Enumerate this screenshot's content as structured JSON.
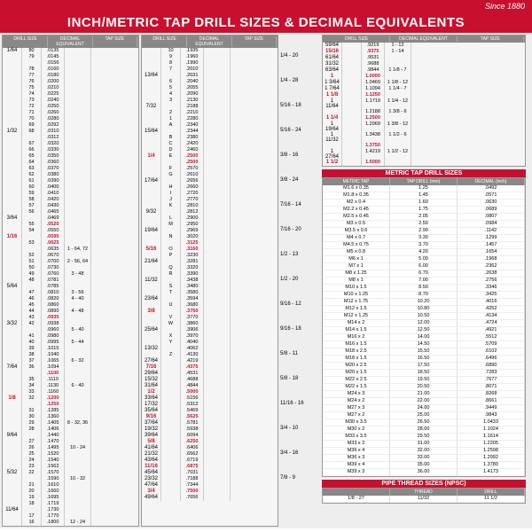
{
  "since": "Since 1880",
  "title": "INCH/METRIC TAP DRILL SIZES & DECIMAL EQUIVALENTS",
  "headers": {
    "ds": "DRILL SIZE",
    "de": "DECIMAL EQUIVALENT",
    "ts": "TAP SIZE"
  },
  "col1": [
    {
      "f": "1/64",
      "n": "80",
      "d": ".0135"
    },
    {
      "n": "79",
      "d": ".0145"
    },
    {
      "n": "",
      "d": ".0156"
    },
    {
      "n": "78",
      "d": ".0160"
    },
    {
      "n": "77",
      "d": ".0180"
    },
    {
      "n": "76",
      "d": ".0200"
    },
    {
      "n": "75",
      "d": ".0210"
    },
    {
      "n": "74",
      "d": ".0225"
    },
    {
      "n": "73",
      "d": ".0240"
    },
    {
      "n": "72",
      "d": ".0250"
    },
    {
      "n": "71",
      "d": ".0260"
    },
    {
      "n": "70",
      "d": ".0280"
    },
    {
      "n": "69",
      "d": ".0292"
    },
    {
      "f": "1/32",
      "n": "68",
      "d": ".0310"
    },
    {
      "n": "",
      "d": ".0312"
    },
    {
      "n": "67",
      "d": ".0320"
    },
    {
      "n": "66",
      "d": ".0330"
    },
    {
      "n": "65",
      "d": ".0350"
    },
    {
      "n": "64",
      "d": ".0360"
    },
    {
      "n": "63",
      "d": ".0370"
    },
    {
      "n": "62",
      "d": ".0380"
    },
    {
      "n": "61",
      "d": ".0390"
    },
    {
      "n": "60",
      "d": ".0400"
    },
    {
      "n": "59",
      "d": ".0410"
    },
    {
      "n": "58",
      "d": ".0420"
    },
    {
      "n": "57",
      "d": ".0430"
    },
    {
      "n": "56",
      "d": ".0465"
    },
    {
      "f": "3/64",
      "n": "",
      "d": ".0469"
    },
    {
      "n": "55",
      "d": ".0520",
      "r": 1
    },
    {
      "n": "54",
      "d": ".0550"
    },
    {
      "f": "1/16",
      "n": "",
      "d": ".0595",
      "r": 1
    },
    {
      "n": "53",
      "d": ".0625",
      "r": 1
    },
    {
      "n": "",
      "d": ".0635",
      "t": "1 - 64, 72"
    },
    {
      "n": "52",
      "d": ".0670"
    },
    {
      "n": "51",
      "d": ".0700",
      "t": "2 - 56, 64"
    },
    {
      "n": "50",
      "d": ".0730"
    },
    {
      "n": "49",
      "d": ".0760",
      "t": "3 - 48"
    },
    {
      "n": "48",
      "d": ".0781"
    },
    {
      "f": "5/64",
      "n": "",
      "d": ".0785"
    },
    {
      "n": "47",
      "d": ".0810",
      "t": "3 - 56"
    },
    {
      "n": "46",
      "d": ".0820",
      "t": "4 - 40"
    },
    {
      "n": "45",
      "d": ".0860"
    },
    {
      "n": "44",
      "d": ".0890",
      "t": "4 - 48"
    },
    {
      "n": "43",
      "d": ".0935",
      "r": 1
    },
    {
      "f": "3/32",
      "n": "42",
      "d": ".0938"
    },
    {
      "n": "",
      "d": ".0960",
      "t": "5 - 40"
    },
    {
      "n": "41",
      "d": ".0980"
    },
    {
      "n": "40",
      "d": ".0995",
      "t": "5 - 44"
    },
    {
      "n": "39",
      "d": ".1015"
    },
    {
      "n": "38",
      "d": ".1040"
    },
    {
      "n": "37",
      "d": ".1065",
      "t": "6 - 32"
    },
    {
      "f": "7/64",
      "n": "36",
      "d": ".1094"
    },
    {
      "n": "",
      "d": ".1100",
      "r": 1
    },
    {
      "n": "35",
      "d": ".1110"
    },
    {
      "n": "34",
      "d": ".1130",
      "t": "6 - 40"
    },
    {
      "n": "33",
      "d": ".1160"
    },
    {
      "f": "1/8",
      "n": "32",
      "d": ".1200",
      "r": 1
    },
    {
      "n": "",
      "d": ".1250",
      "r": 1
    },
    {
      "n": "31",
      "d": ".1285"
    },
    {
      "n": "30",
      "d": ".1360"
    },
    {
      "n": "29",
      "d": ".1405",
      "t": "8 - 32, 36"
    },
    {
      "n": "28",
      "d": ".1406"
    },
    {
      "f": "9/64",
      "n": "",
      "d": ".1440"
    },
    {
      "n": "27",
      "d": ".1470"
    },
    {
      "n": "26",
      "d": ".1495",
      "t": "10 - 24"
    },
    {
      "n": "25",
      "d": ".1520"
    },
    {
      "n": "24",
      "d": ".1540"
    },
    {
      "n": "23",
      "d": ".1562"
    },
    {
      "f": "5/32",
      "n": "22",
      "d": ".1570"
    },
    {
      "n": "",
      "d": ".1590",
      "t": "10 - 32"
    },
    {
      "n": "21",
      "d": ".1610"
    },
    {
      "n": "20",
      "d": ".1660"
    },
    {
      "n": "19",
      "d": ".1695"
    },
    {
      "n": "18",
      "d": ".1719"
    },
    {
      "f": "11/64",
      "n": "",
      "d": ".1730"
    },
    {
      "n": "17",
      "d": ".1770"
    },
    {
      "n": "16",
      "d": ".1800",
      "t": "12 - 24"
    }
  ],
  "col2": [
    {
      "n": "10",
      "d": ".1935"
    },
    {
      "n": "9",
      "d": ".1960"
    },
    {
      "n": "8",
      "d": ".1990"
    },
    {
      "n": "7",
      "d": ".2010"
    },
    {
      "f": "13/64",
      "n": "",
      "d": ".2031"
    },
    {
      "n": "6",
      "d": ".2040"
    },
    {
      "n": "5",
      "d": ".2055"
    },
    {
      "n": "4",
      "d": ".2090"
    },
    {
      "n": "3",
      "d": ".2130"
    },
    {
      "f": "7/32",
      "n": "",
      "d": ".2188"
    },
    {
      "n": "2",
      "d": ".2210"
    },
    {
      "n": "1",
      "d": ".2280"
    },
    {
      "n": "A",
      "d": ".2340"
    },
    {
      "f": "15/64",
      "n": "",
      "d": ".2344"
    },
    {
      "n": "B",
      "d": ".2380"
    },
    {
      "n": "C",
      "d": ".2420"
    },
    {
      "n": "D",
      "d": ".2460"
    },
    {
      "f": "1/4",
      "n": "E",
      "d": ".2500",
      "r": 1
    },
    {
      "n": "",
      "d": ".2500",
      "r": 1
    },
    {
      "n": "F",
      "d": ".2570"
    },
    {
      "n": "G",
      "d": ".2610"
    },
    {
      "f": "17/64",
      "n": "",
      "d": ".2656"
    },
    {
      "n": "H",
      "d": ".2660"
    },
    {
      "n": "I",
      "d": ".2720"
    },
    {
      "n": "J",
      "d": ".2770"
    },
    {
      "n": "K",
      "d": ".2810"
    },
    {
      "f": "9/32",
      "n": "",
      "d": ".2812"
    },
    {
      "n": "L",
      "d": ".2900"
    },
    {
      "n": "M",
      "d": ".2950"
    },
    {
      "f": "19/64",
      "n": "",
      "d": ".2969"
    },
    {
      "n": "N",
      "d": ".3020"
    },
    {
      "n": "",
      "d": ".3125",
      "r": 1
    },
    {
      "f": "5/16",
      "n": "O",
      "d": ".3160",
      "r": 1
    },
    {
      "n": "P",
      "d": ".3230"
    },
    {
      "f": "21/64",
      "n": "",
      "d": ".3281"
    },
    {
      "n": "Q",
      "d": ".3320"
    },
    {
      "n": "R",
      "d": ".3390"
    },
    {
      "f": "11/32",
      "n": "",
      "d": ".3438"
    },
    {
      "n": "S",
      "d": ".3480"
    },
    {
      "n": "T",
      "d": ".3580"
    },
    {
      "f": "23/64",
      "n": "",
      "d": ".3594"
    },
    {
      "n": "U",
      "d": ".3680"
    },
    {
      "f": "3/8",
      "n": "",
      "d": ".3750",
      "r": 1
    },
    {
      "n": "V",
      "d": ".3770"
    },
    {
      "n": "W",
      "d": ".3860"
    },
    {
      "f": "25/64",
      "n": "",
      "d": ".3906"
    },
    {
      "n": "X",
      "d": ".3970"
    },
    {
      "n": "Y",
      "d": ".4040"
    },
    {
      "f": "13/32",
      "n": "",
      "d": ".4062"
    },
    {
      "n": "Z",
      "d": ".4130"
    },
    {
      "f": "27/64",
      "n": "",
      "d": ".4219"
    },
    {
      "f": "7/16",
      "n": "",
      "d": ".4375",
      "r": 1
    },
    {
      "f": "29/64",
      "n": "",
      "d": ".4531"
    },
    {
      "f": "15/32",
      "n": "",
      "d": ".4688"
    },
    {
      "f": "31/64",
      "n": "",
      "d": ".4844"
    },
    {
      "f": "1/2",
      "n": "",
      "d": ".5000",
      "r": 1
    },
    {
      "f": "33/64",
      "n": "",
      "d": ".5156"
    },
    {
      "f": "17/32",
      "n": "",
      "d": ".5312"
    },
    {
      "f": "35/64",
      "n": "",
      "d": ".5469"
    },
    {
      "f": "9/16",
      "n": "",
      "d": ".5625",
      "r": 1
    },
    {
      "f": "37/64",
      "n": "",
      "d": ".5781"
    },
    {
      "f": "19/32",
      "n": "",
      "d": ".5938"
    },
    {
      "f": "39/64",
      "n": "",
      "d": ".6094"
    },
    {
      "f": "5/8",
      "n": "",
      "d": ".6250",
      "r": 1
    },
    {
      "f": "41/64",
      "n": "",
      "d": ".6406"
    },
    {
      "f": "21/32",
      "n": "",
      "d": ".6562"
    },
    {
      "f": "43/64",
      "n": "",
      "d": ".6719"
    },
    {
      "f": "11/16",
      "n": "",
      "d": ".6875",
      "r": 1
    },
    {
      "f": "45/64",
      "n": "",
      "d": ".7031"
    },
    {
      "f": "23/32",
      "n": "",
      "d": ".7188"
    },
    {
      "f": "47/64",
      "n": "",
      "d": ".7344"
    },
    {
      "f": "3/4",
      "n": "",
      "d": ".7500",
      "r": 1
    },
    {
      "f": "49/64",
      "n": "",
      "d": ".7656"
    }
  ],
  "col2taps": [
    "1/4 - 20",
    "1/4 - 28",
    "5/16 - 18",
    "5/16 - 24",
    "3/8 - 16",
    "3/8 - 24",
    "7/16 - 14",
    "7/16 - 20",
    "1/2 - 13",
    "1/2 - 20",
    "9/16 - 12",
    "9/16 - 18",
    "5/8 - 11",
    "5/8 - 18",
    "11/16 - 16",
    "3/4 - 10",
    "3/4 - 16",
    "7/8 - 9"
  ],
  "col3": [
    {
      "f": "59/64",
      "n": "",
      "d": ".9219",
      "t": "1 - 12"
    },
    {
      "f": "15/16",
      "n": "",
      "d": ".9375",
      "r": 1,
      "t": "1 - 14"
    },
    {
      "f": "61/64",
      "n": "",
      "d": ".9531"
    },
    {
      "f": "31/32",
      "n": "",
      "d": ".9688"
    },
    {
      "f": "63/64",
      "n": "",
      "d": ".9844",
      "t": "1 1/8 - 7"
    },
    {
      "f": "1",
      "n": "",
      "d": "1.0000",
      "r": 1
    },
    {
      "f": "1 3/64",
      "n": "",
      "d": "1.0469",
      "t": "1 1/8 - 12"
    },
    {
      "f": "1 7/64",
      "n": "",
      "d": "1.1094",
      "t": "1 1/4 - 7"
    },
    {
      "f": "1 1/8",
      "n": "",
      "d": "1.1250",
      "r": 1
    },
    {
      "f": "1 11/64",
      "n": "",
      "d": "1.1719",
      "t": "1 1/4 - 12"
    },
    {
      "n": "",
      "d": "1.2188",
      "t": "1 3/8 - 6"
    },
    {
      "f": "1 1/4",
      "n": "",
      "d": "1.2500",
      "r": 1
    },
    {
      "f": "1 19/64",
      "n": "",
      "d": "1.2969",
      "t": "1 3/8 - 12"
    },
    {
      "f": "1 11/32",
      "n": "",
      "d": "1.3438",
      "t": "1 1/2 - 6"
    },
    {
      "n": "",
      "d": "1.3750",
      "r": 1
    },
    {
      "f": "1 27/64",
      "n": "",
      "d": "1.4219",
      "t": "1 1/2 - 12"
    },
    {
      "f": "1 1/2",
      "n": "",
      "d": "1.5000",
      "r": 1
    }
  ],
  "metric": {
    "title": "METRIC TAP DRILL SIZES",
    "hdr": [
      "METRIC TAP",
      "TAP DRILL (mm)",
      "DECIMAL (inch)"
    ],
    "rows": [
      [
        "M1.6 x 0.35",
        "1.25",
        ".0492"
      ],
      [
        "M1.8 x 0.35",
        "1.45",
        ".0571"
      ],
      [
        "M2 x 0.4",
        "1.60",
        ".0630"
      ],
      [
        "M2.2 x 0.45",
        "1.75",
        ".0689"
      ],
      [
        "M2.5 x 0.45",
        "2.05",
        ".0807"
      ],
      [
        "M3 x 0.5",
        "2.50",
        ".0984"
      ],
      [
        "M3.5 x 0.6",
        "2.90",
        ".1142"
      ],
      [
        "M4 x 0.7",
        "3.30",
        ".1299"
      ],
      [
        "M4.5 x 0.75",
        "3.70",
        ".1457"
      ],
      [
        "M5 x 0.8",
        "4.20",
        ".1654"
      ],
      [
        "M6 x 1",
        "5.00",
        ".1968"
      ],
      [
        "M7 x 1",
        "6.00",
        ".2362"
      ],
      [
        "M8 x 1.25",
        "6.70",
        ".2638"
      ],
      [
        "M8 x 1",
        "7.00",
        ".2756"
      ],
      [
        "M10 x 1.5",
        "8.50",
        ".3346"
      ],
      [
        "M10 x 1.25",
        "8.70",
        ".3425"
      ],
      [
        "M12 x 1.75",
        "10.20",
        ".4016"
      ],
      [
        "M12 x 1.5",
        "10.80",
        ".4252"
      ],
      [
        "M12 x 1.25",
        "10.50",
        ".4134"
      ],
      [
        "M14 x 2",
        "12.00",
        ".4724"
      ],
      [
        "M14 x 1.5",
        "12.50",
        ".4921"
      ],
      [
        "M16 x 2",
        "14.00",
        ".5512"
      ],
      [
        "M16 x 1.5",
        "14.50",
        ".5709"
      ],
      [
        "M18 x 2.5",
        "15.50",
        ".6102"
      ],
      [
        "M18 x 1.5",
        "16.50",
        ".6496"
      ],
      [
        "M20 x 2.5",
        "17.50",
        ".6890"
      ],
      [
        "M20 x 1.5",
        "18.50",
        ".7283"
      ],
      [
        "M22 x 2.5",
        "19.50",
        ".7677"
      ],
      [
        "M22 x 1.5",
        "20.50",
        ".8071"
      ],
      [
        "M24 x 3",
        "21.00",
        ".8268"
      ],
      [
        "M24 x 2",
        "22.00",
        ".8661"
      ],
      [
        "M27 x 3",
        "24.00",
        ".9449"
      ],
      [
        "M27 x 2",
        "25.00",
        ".9843"
      ],
      [
        "M30 x 3.5",
        "26.50",
        "1.0433"
      ],
      [
        "M30 x 2",
        "28.00",
        "1.1024"
      ],
      [
        "M33 x 3.5",
        "29.50",
        "1.1614"
      ],
      [
        "M33 x 2",
        "31.00",
        "1.2205"
      ],
      [
        "M36 x 4",
        "32.00",
        "1.2598"
      ],
      [
        "M36 x 3",
        "33.00",
        "1.2992"
      ],
      [
        "M39 x 4",
        "35.00",
        "1.3780"
      ],
      [
        "M39 x 3",
        "36.00",
        "1.4173"
      ]
    ]
  },
  "pipe": {
    "title": "PIPE THREAD SIZES (NPSC)",
    "hdr": [
      "",
      "THREAD",
      "DRILL"
    ],
    "rows": [
      [
        "1/8 - 27",
        "11/32",
        "11 1/2"
      ]
    ]
  }
}
